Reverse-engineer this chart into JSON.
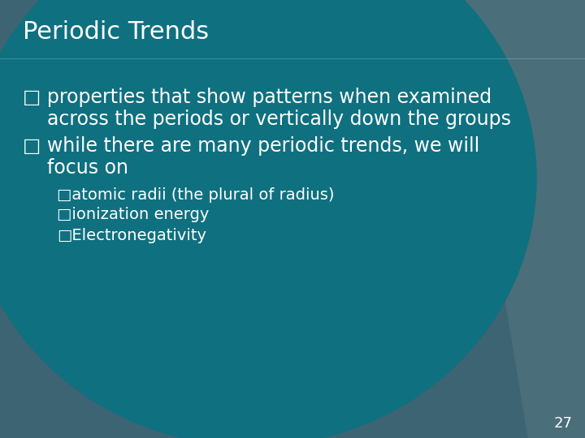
{
  "title": "Periodic Trends",
  "bg_color_outer": "#3d6472",
  "bg_color_teal": "#0f7080",
  "bg_color_stripe": "#4a6e7a",
  "text_color": "#ffffff",
  "title_fontsize": 22,
  "body_fontsize": 17,
  "sub_fontsize": 14,
  "page_number": "27",
  "bullet1_line1": "□ properties that show patterns when examined",
  "bullet1_line2": "    across the periods or vertically down the groups",
  "bullet2_line1": "□ while there are many periodic trends, we will",
  "bullet2_line2": "    focus on",
  "sub_bullet1": "□atomic radii (the plural of radius)",
  "sub_bullet2": "□ionization energy",
  "sub_bullet3": "□Electronegativity"
}
